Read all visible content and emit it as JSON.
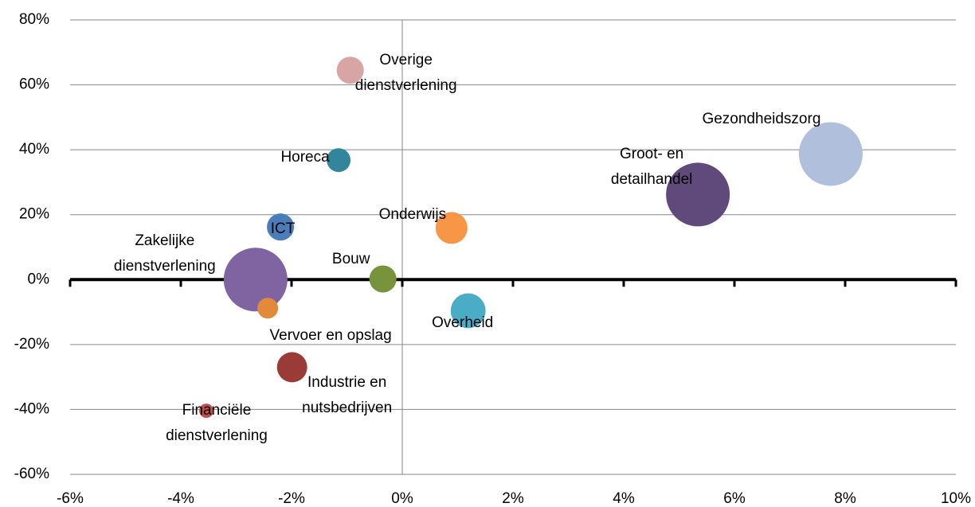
{
  "chart_data": {
    "type": "bubble",
    "categories": [
      "Overige dienstverlening",
      "Horeca",
      "Gezondheidszorg",
      "Groot- en detailhandel",
      "ICT",
      "Onderwijs",
      "Zakelijke dienstverlening",
      "Bouw",
      "Vervoer en opslag",
      "Overheid",
      "Industrie en nutsbedrijven",
      "Financiële dienstverlening"
    ],
    "x": [
      -0.94,
      -1.15,
      7.74,
      5.34,
      -2.2,
      0.89,
      -2.65,
      -0.35,
      -2.43,
      1.19,
      -1.99,
      -3.54
    ],
    "values": [
      64.5,
      36.8,
      38.7,
      26.2,
      16.2,
      15.9,
      0,
      0.2,
      -8.8,
      -9.6,
      -27,
      -40.4
    ],
    "sizes": [
      2.9,
      2.25,
      16,
      16,
      2.9,
      4,
      16,
      2.9,
      1.7,
      4.8,
      3.6,
      0.8
    ],
    "colors": [
      "#d9a5a4",
      "#31859c",
      "#b0bfdc",
      "#604a7b",
      "#4a7ebb",
      "#f79646",
      "#8064a2",
      "#77933c",
      "#e08a3a",
      "#4bacc6",
      "#9b3b38",
      "#c0504d"
    ],
    "xlim": [
      -6,
      10
    ],
    "xticks": [
      {
        "value": -6,
        "label": "-6%"
      },
      {
        "value": -4,
        "label": "-4%"
      },
      {
        "value": -2,
        "label": "-2%"
      },
      {
        "value": 0,
        "label": "0%"
      },
      {
        "value": 2,
        "label": "2%"
      },
      {
        "value": 4,
        "label": "4%"
      },
      {
        "value": 6,
        "label": "6%"
      },
      {
        "value": 8,
        "label": "8%"
      },
      {
        "value": 10,
        "label": "10%"
      }
    ],
    "ylim": [
      -60,
      80
    ],
    "yticks": [
      {
        "value": -60,
        "label": "-60%"
      },
      {
        "value": -40,
        "label": "-40%"
      },
      {
        "value": -20,
        "label": "-20%"
      },
      {
        "value": 0,
        "label": "0%"
      },
      {
        "value": 20,
        "label": "20%"
      },
      {
        "value": 40,
        "label": "40%"
      },
      {
        "value": 60,
        "label": "60%"
      },
      {
        "value": 80,
        "label": "80%"
      }
    ],
    "grid": true
  }
}
